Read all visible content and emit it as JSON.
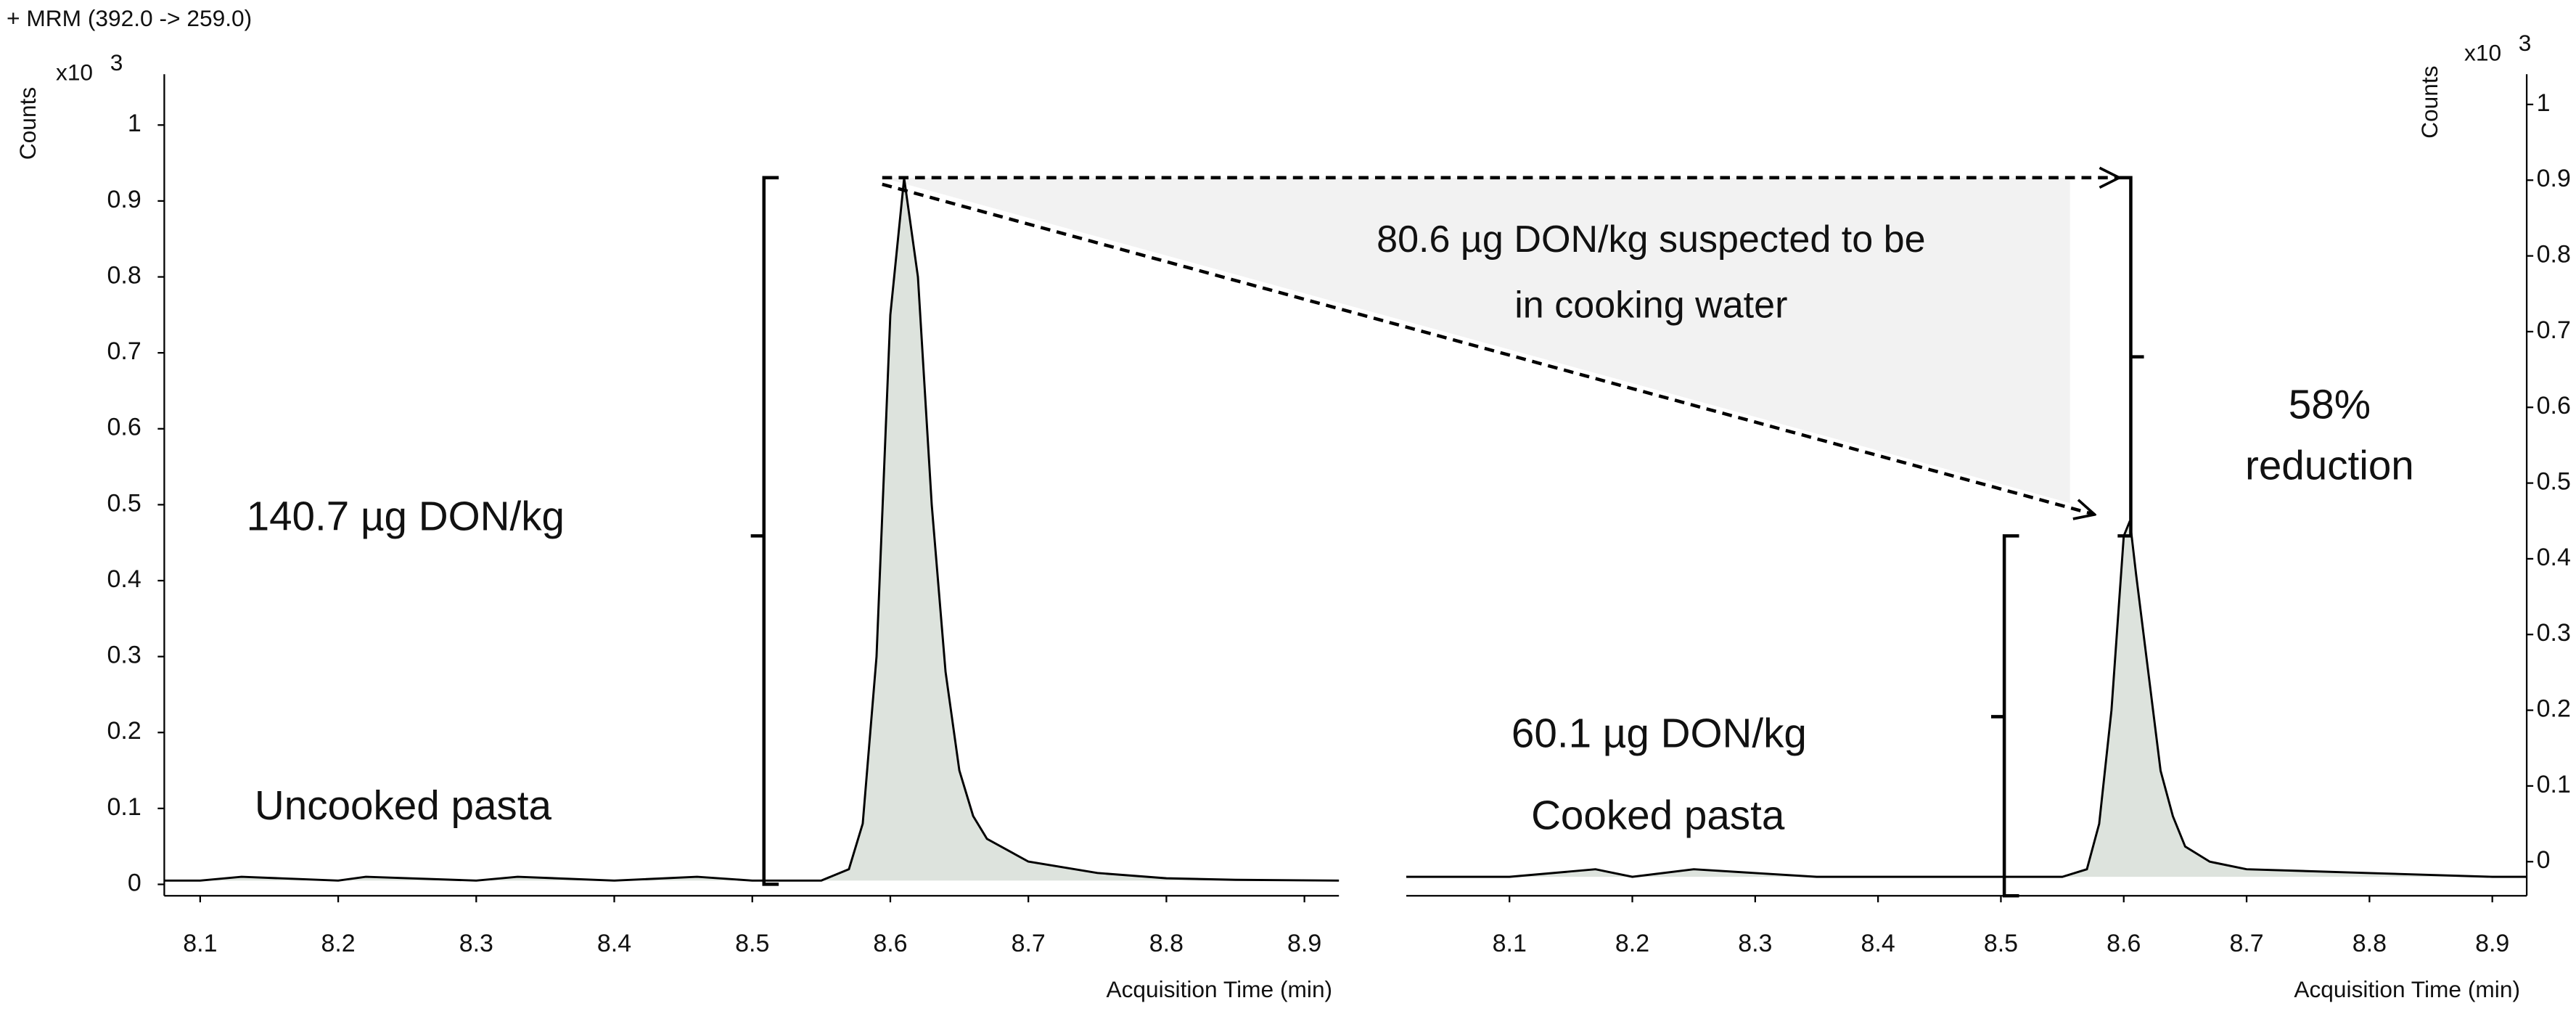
{
  "header": "+ MRM (392.0 -> 259.0)",
  "annotations": [
    "140.7 µg DON/kg",
    "Uncooked pasta",
    "60.1 µg DON/kg",
    "Cooked pasta",
    "80.6 µg DON/kg suspected to be",
    "in cooking water",
    "58%",
    "reduction"
  ],
  "chart_data": [
    {
      "type": "line",
      "y_label": "Counts",
      "y_scale_label": "x10",
      "y_scale_exponent": "3",
      "x_label": "Acquisition Time (min)",
      "y_axis_side": "left",
      "color": "#000000",
      "fill_color": "#dde3dd",
      "x": [
        8.074,
        8.1,
        8.13,
        8.2,
        8.22,
        8.3,
        8.33,
        8.4,
        8.46,
        8.5,
        8.55,
        8.57,
        8.58,
        8.59,
        8.6,
        8.61,
        8.62,
        8.63,
        8.64,
        8.65,
        8.66,
        8.67,
        8.7,
        8.75,
        8.8,
        8.85,
        8.925
      ],
      "series": [
        {
          "name": "Uncooked pasta",
          "values": [
            0.005,
            0.005,
            0.01,
            0.005,
            0.01,
            0.005,
            0.01,
            0.005,
            0.01,
            0.005,
            0.005,
            0.02,
            0.08,
            0.3,
            0.75,
            0.93,
            0.8,
            0.5,
            0.28,
            0.15,
            0.09,
            0.06,
            0.03,
            0.015,
            0.008,
            0.006,
            0.005
          ]
        }
      ],
      "xlim": [
        8.074,
        8.925
      ],
      "ylim": [
        -0.015,
        1.067
      ],
      "xticks": [
        8.1,
        8.2,
        8.3,
        8.4,
        8.5,
        8.6,
        8.7,
        8.8,
        8.9
      ],
      "yticks": [
        0,
        0.1,
        0.2,
        0.3,
        0.4,
        0.5,
        0.6,
        0.7,
        0.8,
        0.9,
        1
      ]
    },
    {
      "type": "line",
      "y_label": "Counts",
      "y_scale_label": "x10",
      "y_scale_exponent": "3",
      "x_label": "Acquisition Time (min)",
      "y_axis_side": "right",
      "color": "#000000",
      "fill_color": "#dde3dd",
      "x": [
        8.016,
        8.1,
        8.17,
        8.2,
        8.25,
        8.35,
        8.5,
        8.55,
        8.57,
        8.58,
        8.59,
        8.6,
        8.605,
        8.61,
        8.62,
        8.63,
        8.64,
        8.65,
        8.67,
        8.7,
        8.8,
        8.9,
        8.928
      ],
      "series": [
        {
          "name": "Cooked pasta",
          "values": [
            -0.02,
            -0.02,
            -0.01,
            -0.02,
            -0.01,
            -0.02,
            -0.02,
            -0.02,
            -0.01,
            0.05,
            0.2,
            0.43,
            0.45,
            0.38,
            0.25,
            0.12,
            0.06,
            0.02,
            0.0,
            -0.01,
            -0.015,
            -0.02,
            -0.02
          ]
        }
      ],
      "xlim": [
        8.016,
        8.928
      ],
      "ylim": [
        -0.045,
        1.04
      ],
      "xticks": [
        8.1,
        8.2,
        8.3,
        8.4,
        8.5,
        8.6,
        8.7,
        8.8,
        8.9
      ],
      "yticks": [
        0,
        0.1,
        0.2,
        0.3,
        0.4,
        0.5,
        0.6,
        0.7,
        0.8,
        0.9,
        1
      ]
    }
  ]
}
